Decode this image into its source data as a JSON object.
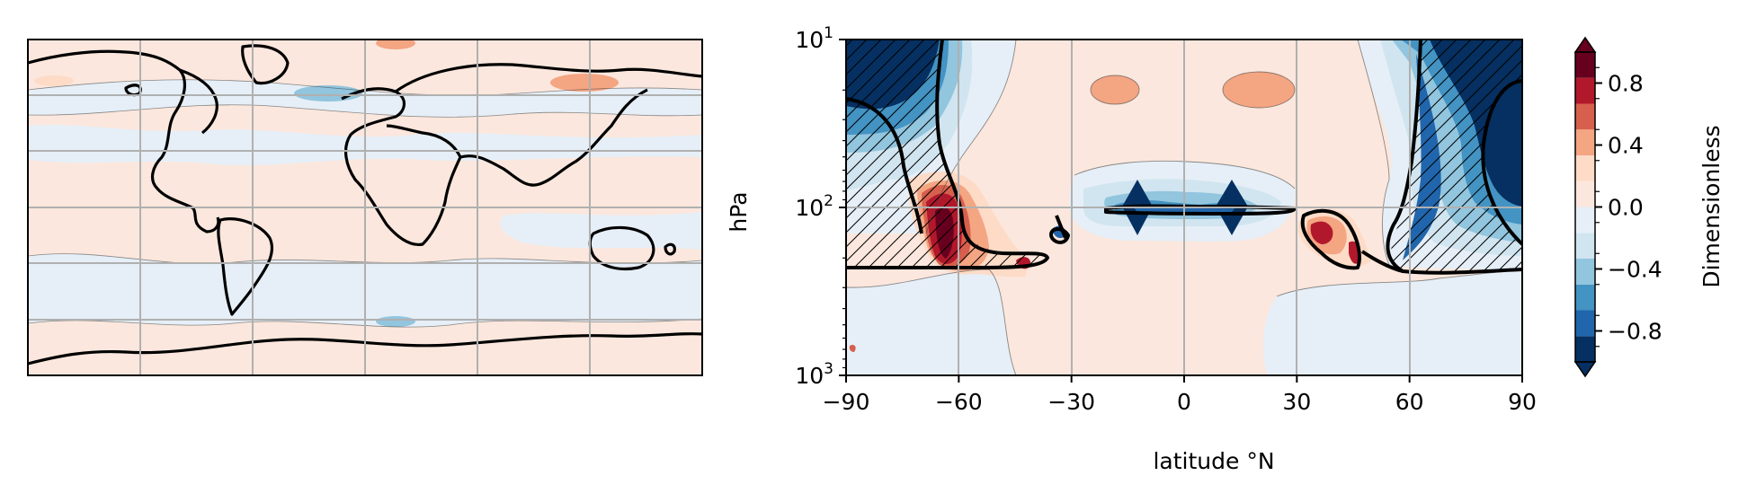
{
  "chart_data": [
    {
      "type": "contour_map",
      "panel": "left",
      "projection": "PlateCarree",
      "description_values": {
        "gridlines": true,
        "coastlines": true
      },
      "regions": [
        {
          "name": "north-pacific-band",
          "value": -0.1
        },
        {
          "name": "tropical-band",
          "value": 0.1
        },
        {
          "name": "southern-midlat-band",
          "value": -0.1
        },
        {
          "name": "southern-ocean-band",
          "value": 0.1
        },
        {
          "name": "north-atlantic-feature",
          "value": 0.3
        },
        {
          "name": "siberia-feature",
          "value": 0.3
        },
        {
          "name": "north-asia-negative",
          "value": -0.3
        }
      ]
    },
    {
      "type": "contour",
      "panel": "right",
      "title": "",
      "xlabel": "latitude °N",
      "ylabel": "hPa",
      "x_ticks": [
        -90,
        -60,
        -30,
        0,
        30,
        60,
        90
      ],
      "x_tick_labels": [
        "−90",
        "−60",
        "−30",
        "0",
        "30",
        "60",
        "90"
      ],
      "y_ticks": [
        10,
        100,
        1000
      ],
      "y_tick_labels": [
        {
          "base": "10",
          "exp": "1"
        },
        {
          "base": "10",
          "exp": "2"
        },
        {
          "base": "10",
          "exp": "3"
        }
      ],
      "xlim": [
        -90,
        90
      ],
      "ylim": [
        1000,
        10
      ],
      "y_scale": "log",
      "grid": true,
      "hatching": "significance",
      "features": [
        {
          "name": "nh-polar-stratosphere",
          "lat_range": [
            55,
            90
          ],
          "p_range": [
            10,
            230
          ],
          "value": -1.0
        },
        {
          "name": "sh-polar-stratosphere",
          "lat_range": [
            -90,
            -60
          ],
          "p_range": [
            10,
            220
          ],
          "value": -1.0
        },
        {
          "name": "sh-tropopause-maximum",
          "lat_range": [
            -72,
            -55
          ],
          "p_range": [
            80,
            230
          ],
          "value": 1.0
        },
        {
          "name": "nh-tropopause-maximum",
          "lat_range": [
            33,
            50
          ],
          "p_range": [
            150,
            250
          ],
          "value": 0.9
        },
        {
          "name": "equatorial-minimum-south",
          "lat": -12,
          "p": 100,
          "value": -1.0
        },
        {
          "name": "equatorial-minimum-north",
          "lat": 13,
          "p": 100,
          "value": -1.0
        },
        {
          "name": "upper-positive-1",
          "lat": -10,
          "p": 25,
          "value": 0.2
        },
        {
          "name": "upper-positive-2",
          "lat": 20,
          "p": 25,
          "value": 0.2
        }
      ]
    },
    {
      "type": "colorbar",
      "label": "Dimensionless",
      "ticks": [
        0.8,
        0.4,
        0.0,
        -0.4,
        -0.8
      ],
      "tick_labels": [
        "0.8",
        "0.4",
        "0.0",
        "−0.4",
        "−0.8"
      ],
      "range": [
        -1.0,
        1.0
      ],
      "extend": "both",
      "colors": [
        "#053061",
        "#2166ac",
        "#4393c3",
        "#92c5de",
        "#d1e5f0",
        "#e6eff7",
        "#fbe7dd",
        "#fddbc7",
        "#f4a582",
        "#d6604d",
        "#b2182b",
        "#67001f"
      ]
    }
  ]
}
